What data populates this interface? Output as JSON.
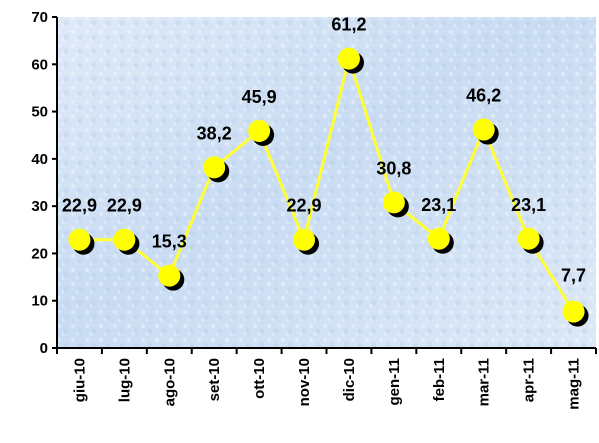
{
  "chart_data": {
    "type": "line",
    "categories": [
      "giu-10",
      "lug-10",
      "ago-10",
      "set-10",
      "ott-10",
      "nov-10",
      "dic-10",
      "gen-11",
      "feb-11",
      "mar-11",
      "apr-11",
      "mag-11"
    ],
    "values": [
      22.9,
      22.9,
      15.3,
      38.2,
      45.9,
      22.9,
      61.2,
      30.8,
      23.1,
      46.2,
      23.1,
      7.7
    ],
    "data_labels": [
      "22,9",
      "22,9",
      "15,3",
      "38,2",
      "45,9",
      "22,9",
      "61,2",
      "30,8",
      "23,1",
      "46,2",
      "23,1",
      "7,7"
    ],
    "yticks": [
      "0",
      "10",
      "20",
      "30",
      "40",
      "50",
      "60",
      "70"
    ],
    "ylim": [
      0,
      70
    ],
    "grid": false,
    "legend": "none",
    "colors": {
      "line": "#ffff33",
      "marker": "#ffff00",
      "marker_shadow": "#000000",
      "plot_bg_light": "#eef4fc",
      "plot_bg_dark": "#bcd4f0",
      "axis": "#000000"
    }
  }
}
